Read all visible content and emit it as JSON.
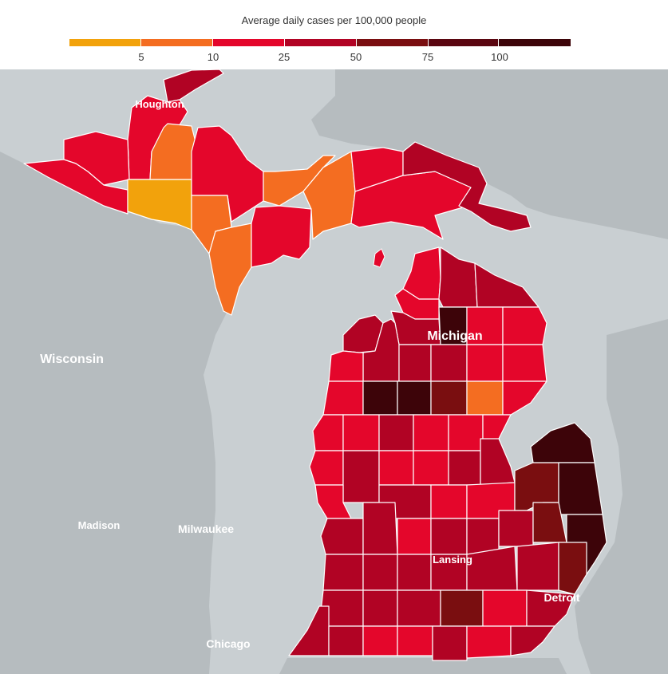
{
  "legend": {
    "title": "Average daily cases per 100,000 people",
    "ticks": [
      "5",
      "10",
      "25",
      "50",
      "75",
      "100"
    ],
    "colors": [
      "#f2a20c",
      "#f46d21",
      "#e4062b",
      "#b10324",
      "#7a0e10",
      "#3d0409"
    ]
  },
  "labels": {
    "houghton": "Houghton",
    "michigan": "Michigan",
    "wisconsin": "Wisconsin",
    "madison": "Madison",
    "milwaukee": "Milwaukee",
    "lansing": "Lansing",
    "detroit": "Detroit",
    "chicago": "Chicago"
  },
  "colors": {
    "water": "#c9cfd2",
    "land": "#b6bcbf",
    "border": "#ffffff"
  }
}
